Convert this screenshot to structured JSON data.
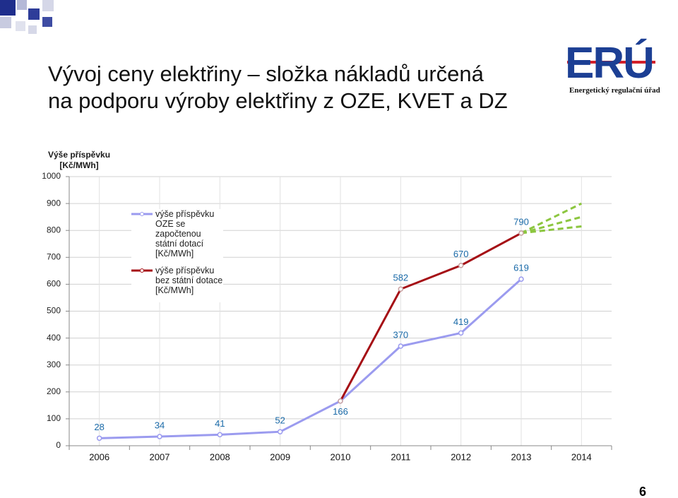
{
  "header": {
    "title": [
      "Vývoj ceny elektřiny – složka nákladů určená",
      "na podporu výroby elektřiny z OZE, KVET a DZ"
    ],
    "logo": "ERÚ",
    "logo_subtitle": "Energetický regulační úřad"
  },
  "chart_data": {
    "type": "line",
    "y_label": "Výše příspěvku [Kč/MWh]",
    "categories": [
      "2006",
      "2007",
      "2008",
      "2009",
      "2010",
      "2011",
      "2012",
      "2013",
      "2014"
    ],
    "ylim": [
      0,
      1000
    ],
    "yticks": [
      0,
      100,
      200,
      300,
      400,
      500,
      600,
      700,
      800,
      900,
      1000
    ],
    "grid": true,
    "series": [
      {
        "name": "výše příspěvku OZE se započtenou státní dotací [Kč/MWh]",
        "color": "#9b9bef",
        "values": [
          28,
          34,
          41,
          52,
          166,
          370,
          419,
          619,
          null
        ]
      },
      {
        "name": "výše příspěvku bez státní dotace [Kč/MWh]",
        "color": "#a50f15",
        "values": [
          null,
          null,
          null,
          null,
          166,
          582,
          670,
          790,
          null
        ]
      }
    ],
    "projections": {
      "color": "#8cc63f",
      "lines": [
        [
          null,
          null,
          null,
          null,
          null,
          null,
          null,
          790,
          900
        ],
        [
          null,
          null,
          null,
          null,
          null,
          null,
          null,
          790,
          850
        ],
        [
          null,
          null,
          null,
          null,
          null,
          null,
          null,
          790,
          815
        ]
      ]
    },
    "legend": "upper left"
  },
  "page_number": "6"
}
